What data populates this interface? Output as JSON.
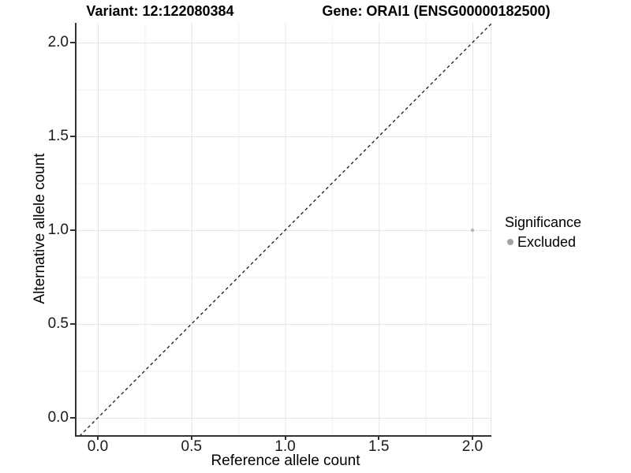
{
  "chart_data": {
    "type": "scatter",
    "title_left": "Variant: 12:122080384",
    "title_right": "Gene: ORAI1 (ENSG00000182500)",
    "xlabel": "Reference allele count",
    "ylabel": "Alternative allele count",
    "xlim": [
      -0.11,
      2.11
    ],
    "ylim": [
      -0.1,
      2.1
    ],
    "x_ticks": [
      0,
      0.5,
      1,
      1.5,
      2
    ],
    "x_tick_labels": [
      "0.0",
      "0.5",
      "1.0",
      "1.5",
      "2.0"
    ],
    "x_minor_ticks": [
      0.25,
      0.75,
      1.25,
      1.75
    ],
    "y_ticks": [
      0,
      0.5,
      1,
      1.5,
      2
    ],
    "y_tick_labels": [
      "0.0",
      "0.5",
      "1.0",
      "1.5",
      "2.0"
    ],
    "y_minor_ticks": [
      0.25,
      0.75,
      1.25,
      1.75
    ],
    "grid": "major+minor",
    "legend_position": "right",
    "points": [
      {
        "x": 2.0,
        "y": 1.0,
        "significance": "Excluded",
        "color": "#b5b5b5",
        "radius": 2.2
      }
    ],
    "identity_line": {
      "equation": "y = x",
      "style": "dashed",
      "color": "#1a1a1a"
    },
    "legend": {
      "title": "Significance",
      "entries": [
        {
          "label": "Excluded",
          "color": "#a3a3a3"
        }
      ]
    }
  },
  "colors": {
    "background": "#ffffff",
    "axis_line": "#333333",
    "grid_major": "#e4e4e4",
    "grid_minor": "#f1f1f1",
    "tick_text": "#1a1a1a"
  }
}
